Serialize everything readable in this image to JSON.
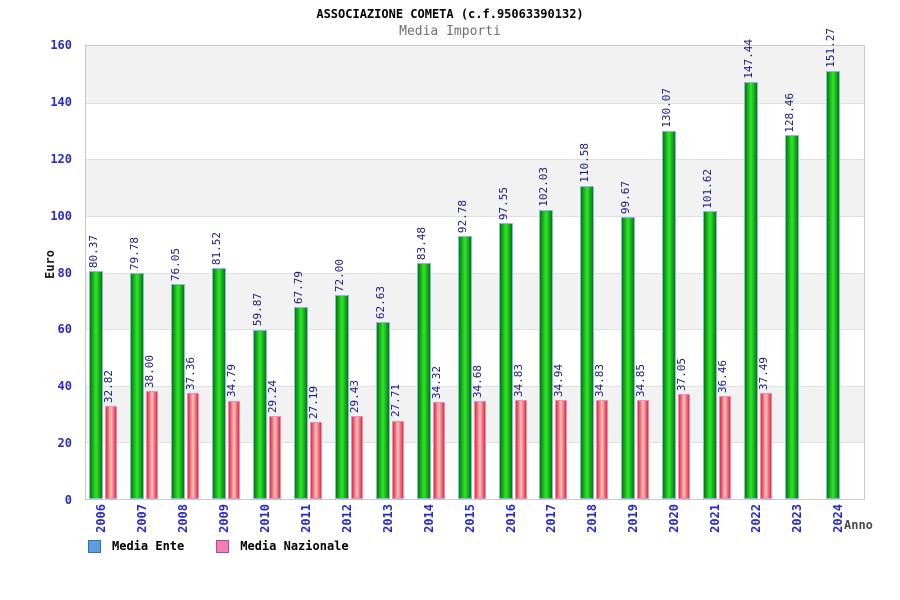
{
  "title": "ASSOCIAZIONE COMETA (c.f.95063390132)",
  "subtitle": "Media Importi",
  "legend": {
    "items": [
      {
        "label": "Media Ente",
        "swatch": "ente"
      },
      {
        "label": "Media Nazionale",
        "swatch": "nazionale"
      }
    ]
  },
  "chart_data": {
    "type": "bar",
    "title": "ASSOCIAZIONE COMETA (c.f.95063390132)",
    "subtitle": "Media Importi",
    "xlabel": "Anno",
    "ylabel": "Euro",
    "ylim": [
      0,
      160
    ],
    "yticks": [
      0,
      20,
      40,
      60,
      80,
      100,
      120,
      140,
      160
    ],
    "grid": "horizontal-bands-every-20",
    "legend_position": "bottom-left",
    "value_labels": "rotated-90-above-bars",
    "categories": [
      "2006",
      "2007",
      "2008",
      "2009",
      "2010",
      "2011",
      "2012",
      "2013",
      "2014",
      "2015",
      "2016",
      "2017",
      "2018",
      "2019",
      "2020",
      "2021",
      "2022",
      "2023",
      "2024"
    ],
    "series": [
      {
        "name": "Media Ente",
        "values": [
          "80.37",
          "79.78",
          "76.05",
          "81.52",
          "59.87",
          "67.79",
          "72.00",
          "62.63",
          "83.48",
          "92.78",
          "97.55",
          "102.03",
          "110.58",
          "99.67",
          "130.07",
          "101.62",
          "147.44",
          "128.46",
          "151.27"
        ]
      },
      {
        "name": "Media Nazionale",
        "values": [
          "32.82",
          "38.00",
          "37.36",
          "34.79",
          "29.24",
          "27.19",
          "29.43",
          "27.71",
          "34.32",
          "34.68",
          "34.83",
          "34.94",
          "34.83",
          "34.85",
          "37.05",
          "36.46",
          "37.49",
          null,
          null
        ]
      }
    ]
  },
  "colors": {
    "title_text": "#000000",
    "subtitle_text": "#6e6e6e",
    "axis_tick_text": "#2629cc",
    "value_label_text": "#191980",
    "ente_bar_dark": "#057a05",
    "ente_bar_light": "#2de32d",
    "ente_bar_border": "#8ab6ee",
    "nazionale_bar_dark": "#e22c3c",
    "nazionale_bar_light": "#f6bcc0",
    "nazionale_bar_border": "#f08cba",
    "legend_ente_swatch": "#5e9de0",
    "legend_ente_border": "#3a6ea8",
    "legend_nazionale_swatch": "#ee7fb2",
    "legend_nazionale_border": "#b84c82",
    "band_gray": "#f2f2f2",
    "band_white": "#ffffff",
    "grid_line": "#e0e0e0",
    "plot_border": "#c8c8c8"
  }
}
